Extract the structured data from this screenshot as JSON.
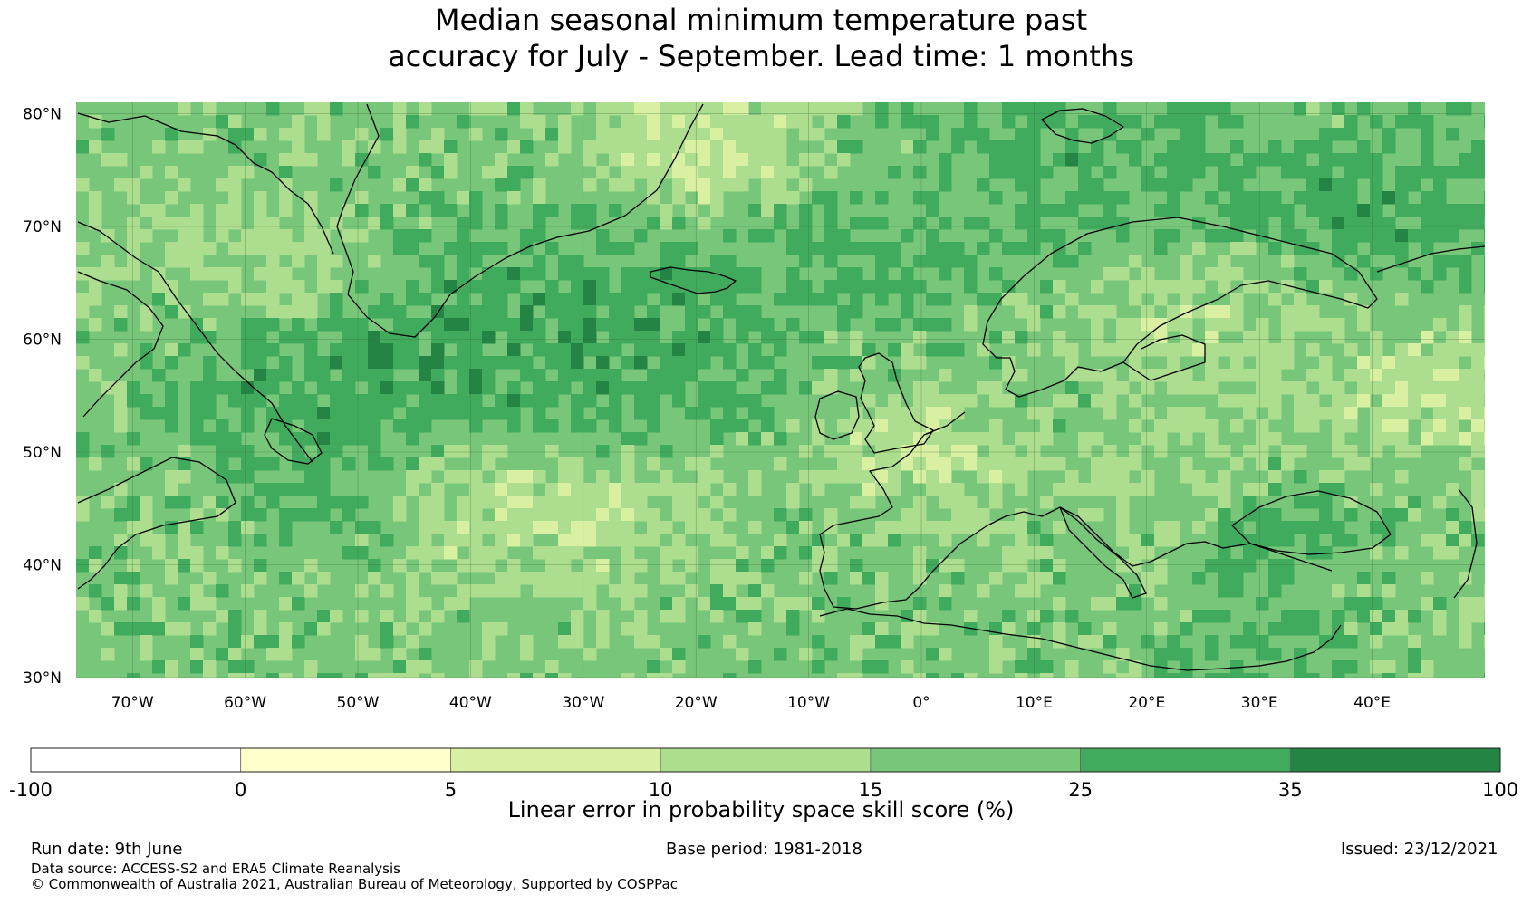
{
  "title": {
    "line1": "Median seasonal minimum temperature past",
    "line2": "accuracy for July - September. Lead time: 1 months"
  },
  "map": {
    "region": "North Atlantic and Europe",
    "lat_range": [
      30,
      81
    ],
    "lon_range": [
      -75,
      50
    ],
    "lat_labels": [
      "30°N",
      "40°N",
      "50°N",
      "60°N",
      "70°N",
      "80°N"
    ],
    "lon_labels": [
      "70°W",
      "60°W",
      "50°W",
      "40°W",
      "30°W",
      "20°W",
      "10°W",
      "0°",
      "10°E",
      "20°E",
      "30°E",
      "40°E"
    ],
    "gridlines": true,
    "coastlines": true
  },
  "colorbar": {
    "label": "Linear error in probability space skill score (%)",
    "ticks": [
      "-100",
      "0",
      "5",
      "10",
      "15",
      "25",
      "35",
      "100"
    ],
    "bins": [
      {
        "from": -100,
        "to": 0,
        "color": "#ffffff"
      },
      {
        "from": 0,
        "to": 5,
        "color": "#ffffcc"
      },
      {
        "from": 5,
        "to": 10,
        "color": "#d9f0a3"
      },
      {
        "from": 10,
        "to": 15,
        "color": "#addd8e"
      },
      {
        "from": 15,
        "to": 25,
        "color": "#78c679"
      },
      {
        "from": 25,
        "to": 35,
        "color": "#41ab5d"
      },
      {
        "from": 35,
        "to": 100,
        "color": "#238443"
      }
    ]
  },
  "footer": {
    "run_date": "Run date: 9th June",
    "base_period": "Base period: 1981-2018",
    "issued": "Issued: 23/12/2021",
    "data_source": "Data source: ACCESS-S2 and ERA5 Climate Reanalysis",
    "copyright": "© Commonwealth of Australia 2021, Australian Bureau of Meteorology, Supported by COSPPac"
  }
}
